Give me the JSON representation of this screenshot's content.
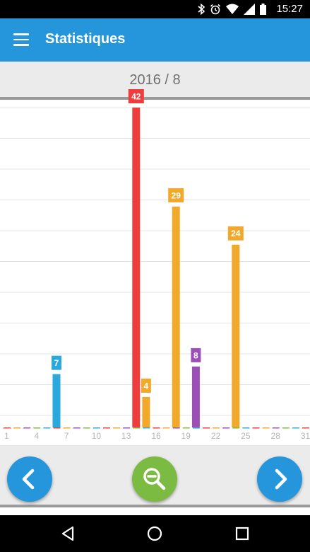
{
  "status_bar": {
    "time": "15:27",
    "icons": [
      "bluetooth-icon",
      "alarm-icon",
      "wifi-icon",
      "signal-icon",
      "battery-icon"
    ]
  },
  "app_bar": {
    "title": "Statistiques",
    "background": "#2596dc"
  },
  "period": {
    "label": "2016 / 8"
  },
  "chart_data": {
    "type": "bar",
    "x_tick_labels": [
      "1",
      "4",
      "7",
      "10",
      "13",
      "16",
      "19",
      "22",
      "25",
      "28",
      "31"
    ],
    "x_range": [
      1,
      31
    ],
    "grid": true,
    "bars": [
      {
        "day": 6,
        "value": 7,
        "color": "#2aa9dc"
      },
      {
        "day": 14,
        "value": 42,
        "color": "#ef3d3d"
      },
      {
        "day": 15,
        "value": 4,
        "color": "#f0a92b"
      },
      {
        "day": 18,
        "value": 29,
        "color": "#f0a92b"
      },
      {
        "day": 20,
        "value": 8,
        "color": "#9c4fb5"
      },
      {
        "day": 24,
        "value": 24,
        "color": "#f0a92b"
      }
    ]
  },
  "controls": {
    "prev_icon": "chevron-left-icon",
    "zoom_icon": "zoom-out-icon",
    "next_icon": "chevron-right-icon",
    "colors": {
      "nav": "#2596dc",
      "zoom": "#7cbb42"
    }
  },
  "system_nav": {
    "icons": [
      "back-icon",
      "home-icon",
      "recents-icon"
    ]
  }
}
